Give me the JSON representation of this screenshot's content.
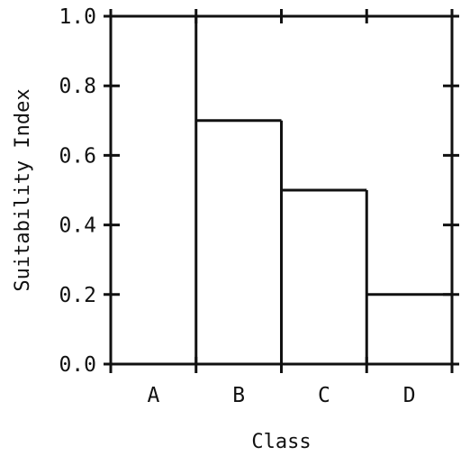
{
  "chart_data": {
    "type": "bar",
    "style": "step",
    "categories": [
      "A",
      "B",
      "C",
      "D"
    ],
    "values": [
      1.0,
      0.7,
      0.5,
      0.2
    ],
    "title": "",
    "xlabel": "Class",
    "ylabel": "Suitability Index",
    "ylim": [
      0.0,
      1.0
    ],
    "yticks": [
      "0.0",
      "0.2",
      "0.4",
      "0.6",
      "0.8",
      "1.0"
    ],
    "grid": false,
    "legend": "none",
    "line_color": "#111111"
  }
}
